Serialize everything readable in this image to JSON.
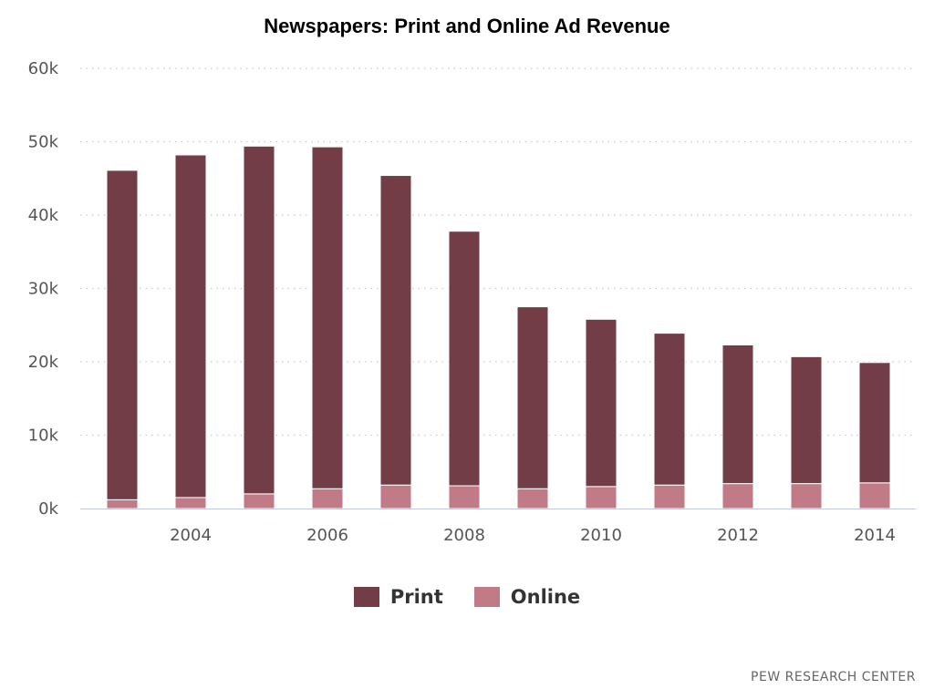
{
  "chart_data": {
    "type": "bar",
    "stacked": true,
    "title": "Newspapers: Print and Online Ad Revenue",
    "xlabel": "",
    "ylabel": "",
    "x": [
      2003,
      2004,
      2005,
      2006,
      2007,
      2008,
      2009,
      2010,
      2011,
      2012,
      2013,
      2014
    ],
    "x_tick_labels": [
      "2004",
      "2006",
      "2008",
      "2010",
      "2012",
      "2014"
    ],
    "y_tick_labels": [
      "0k",
      "10k",
      "20k",
      "30k",
      "40k",
      "50k",
      "60k"
    ],
    "ylim": [
      0,
      60000
    ],
    "grid": true,
    "legend_position": "bottom-center",
    "series": [
      {
        "name": "Online",
        "color": "#c17b87",
        "values": [
          1200,
          1500,
          2000,
          2700,
          3200,
          3100,
          2700,
          3000,
          3200,
          3400,
          3400,
          3500
        ]
      },
      {
        "name": "Print",
        "color": "#733d48",
        "values": [
          44900,
          46700,
          47400,
          46600,
          42200,
          34700,
          24800,
          22800,
          20700,
          18900,
          17300,
          16400
        ]
      }
    ]
  },
  "credit": "PEW RESEARCH CENTER"
}
